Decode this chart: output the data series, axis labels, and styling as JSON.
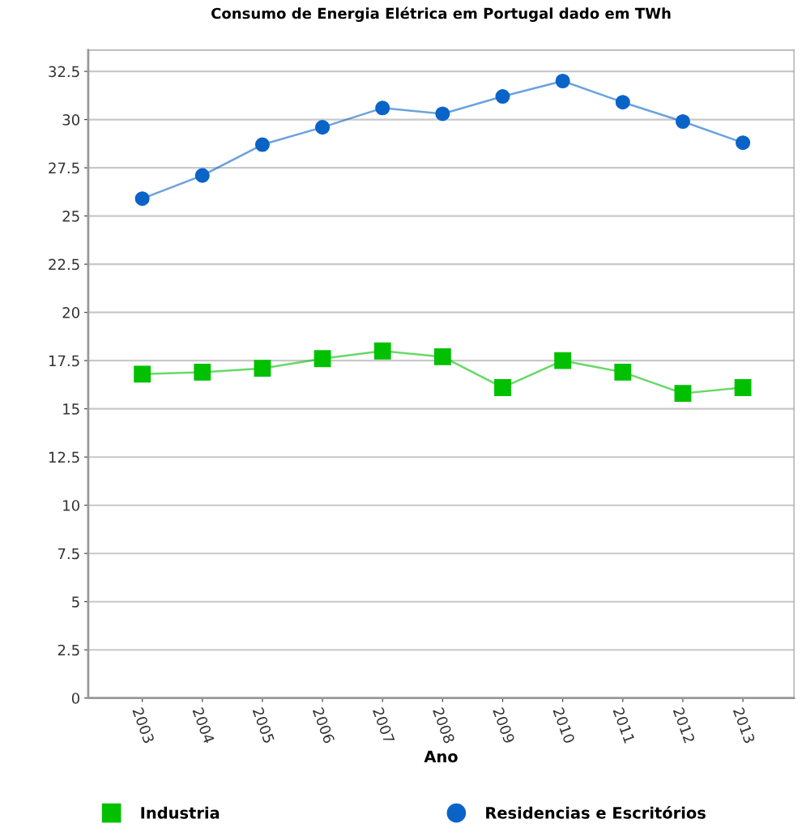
{
  "chart_data": {
    "type": "line",
    "title": "Consumo de Energia Elétrica em Portugal dado em TWh",
    "xlabel": "Ano",
    "categories": [
      "2003",
      "2004",
      "2005",
      "2006",
      "2007",
      "2008",
      "2009",
      "2010",
      "2011",
      "2012",
      "2013"
    ],
    "series": [
      {
        "name": "Industria",
        "color": "#00c000",
        "marker": "square",
        "values": [
          16.8,
          16.9,
          17.1,
          17.6,
          18.0,
          17.7,
          16.1,
          17.5,
          16.9,
          15.8,
          16.1
        ]
      },
      {
        "name": "Residencias e Escritórios",
        "color": "#0a64c8",
        "marker": "circle",
        "values": [
          25.9,
          27.1,
          28.7,
          29.6,
          30.6,
          30.3,
          31.2,
          32.0,
          30.9,
          29.9,
          28.8
        ]
      }
    ],
    "ylim": [
      0,
      33.6
    ],
    "yticks": [
      0,
      2.5,
      5,
      7.5,
      10,
      12.5,
      15,
      17.5,
      20,
      22.5,
      25,
      27.5,
      30,
      32.5
    ],
    "grid": "y",
    "legend": "bottom"
  }
}
